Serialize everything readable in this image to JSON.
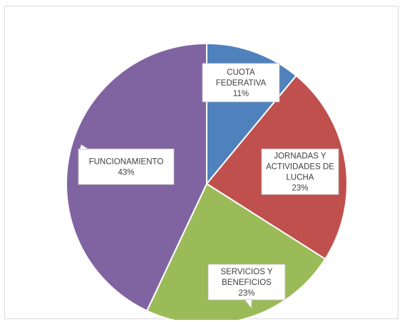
{
  "chart_data": {
    "type": "pie",
    "start_angle_deg": 0,
    "direction": "clockwise",
    "slices": [
      {
        "label_lines": [
          "CUOTA",
          "FEDERATIVA"
        ],
        "percent_label": "11%",
        "value": 11,
        "color": "#4F81BD"
      },
      {
        "label_lines": [
          "JORNADAS Y",
          "ACTIVIDADES DE",
          "LUCHA"
        ],
        "percent_label": "23%",
        "value": 23,
        "color": "#C0504D"
      },
      {
        "label_lines": [
          "SERVICIOS Y",
          "BENEFICIOS"
        ],
        "percent_label": "23%",
        "value": 23,
        "color": "#9BBB59"
      },
      {
        "label_lines": [
          "FUNCIONAMIENTO"
        ],
        "percent_label": "43%",
        "value": 43,
        "color": "#8064A2"
      }
    ]
  }
}
